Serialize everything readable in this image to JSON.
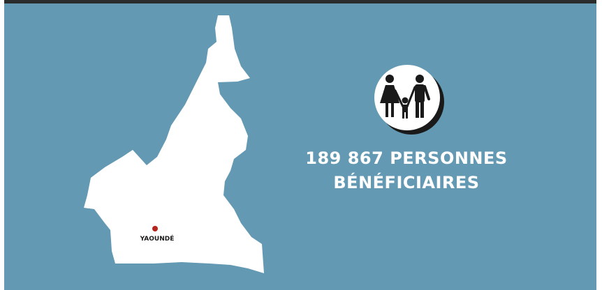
{
  "map": {
    "city_label": "YAOUNDÉ"
  },
  "stat": {
    "lines": [
      "189 867 PERSONNES",
      "BÉNÉFICIAIRES"
    ]
  }
}
